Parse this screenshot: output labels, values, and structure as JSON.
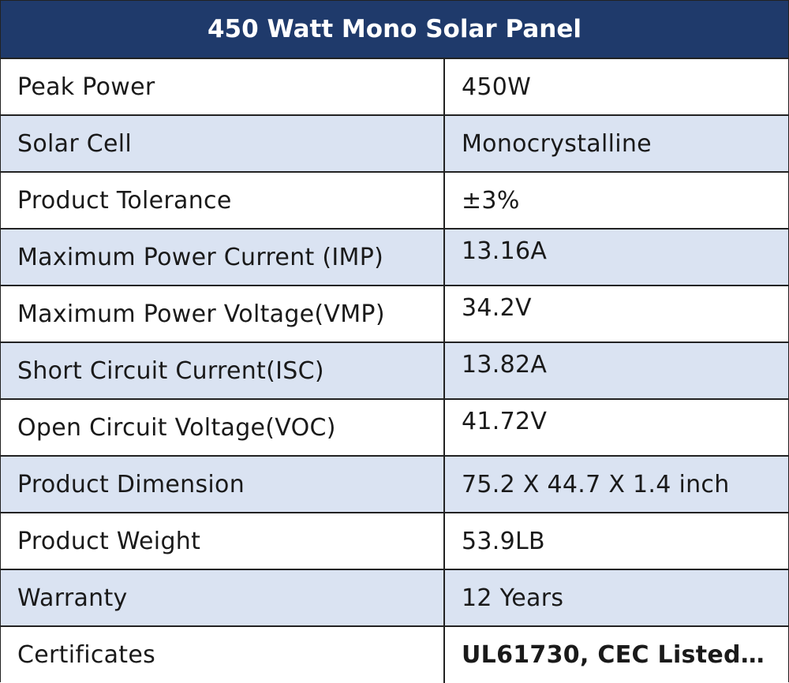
{
  "title": "450 Watt Mono Solar Panel",
  "colors": {
    "header_bg": "#1f3a6b",
    "header_text": "#ffffff",
    "row_shaded": "#dae3f2",
    "row_plain": "#ffffff",
    "border": "#222222"
  },
  "specs": [
    {
      "label": "Peak Power",
      "value": "450W"
    },
    {
      "label": "Solar Cell",
      "value": "Monocrystalline"
    },
    {
      "label": "Product Tolerance",
      "value": "±3%"
    },
    {
      "label": "Maximum Power Current (IMP)",
      "value": "13.16A"
    },
    {
      "label": "Maximum Power Voltage(VMP)",
      "value": "34.2V"
    },
    {
      "label": "Short Circuit Current(ISC)",
      "value": "13.82A"
    },
    {
      "label": "Open Circuit Voltage(VOC)",
      "value": "41.72V"
    },
    {
      "label": "Product Dimension",
      "value": "75.2 X 44.7 X 1.4 inch"
    },
    {
      "label": "Product Weight",
      "value": "53.9LB"
    },
    {
      "label": "Warranty",
      "value": "12 Years"
    },
    {
      "label": "Certificates",
      "value": "UL61730, CEC Listed…"
    }
  ]
}
